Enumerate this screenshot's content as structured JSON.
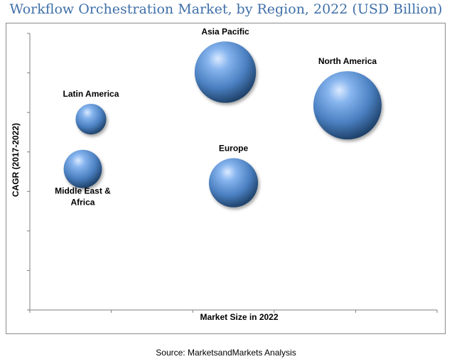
{
  "title": "Workflow Orchestration Market, by Region, 2022 (USD Billion)",
  "source": "Source: MarketsandMarkets Analysis",
  "chart_data": {
    "type": "scatter",
    "variant": "bubble",
    "title": "Workflow Orchestration Market, by Region, 2022 (USD Billion)",
    "xlabel": "Market Size in 2022",
    "ylabel": "CAGR (2017-2022)",
    "x_tick_labels": false,
    "y_tick_labels": false,
    "x_ticks": 5,
    "y_ticks": 8,
    "xlim": [
      0,
      1
    ],
    "ylim": [
      0,
      1
    ],
    "grid": false,
    "legend": "none",
    "bubble_color": "#4a7fc0",
    "series": [
      {
        "name": "North America",
        "x": 0.78,
        "y": 0.74,
        "size": 1.0
      },
      {
        "name": "Asia Pacific",
        "x": 0.48,
        "y": 0.86,
        "size": 0.9
      },
      {
        "name": "Europe",
        "x": 0.5,
        "y": 0.46,
        "size": 0.72
      },
      {
        "name": "Latin America",
        "x": 0.15,
        "y": 0.69,
        "size": 0.45
      },
      {
        "name": "Middle East & Africa",
        "x": 0.13,
        "y": 0.51,
        "size": 0.56
      }
    ]
  }
}
